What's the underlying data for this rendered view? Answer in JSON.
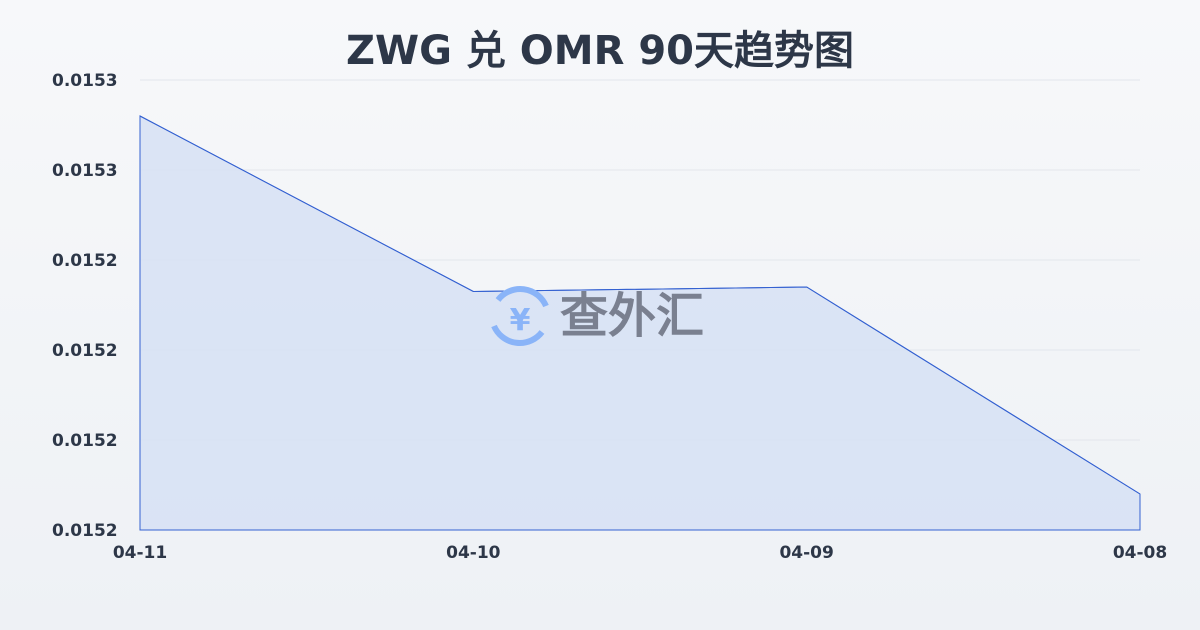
{
  "chart_data": {
    "type": "area",
    "title": "ZWG 兑 OMR 90天趋势图",
    "x": [
      "04-11",
      "04-10",
      "04-09",
      "04-08"
    ],
    "values": [
      0.015272,
      0.015233,
      0.015234,
      0.015188
    ],
    "ylim": [
      0.01518,
      0.01528
    ],
    "yticks": [
      0.01528,
      0.01526,
      0.01524,
      0.01522,
      0.0152,
      0.01518
    ],
    "ytick_labels": [
      "0.0153",
      "0.0153",
      "0.0152",
      "0.0152",
      "0.0152",
      "0.0152"
    ],
    "grid": true,
    "colors": {
      "line": "#3461d1",
      "fill": "#d6e1f5",
      "grid": "#e3e6ec"
    }
  },
  "watermark": {
    "text": "查外汇",
    "icon": "yen-exchange-icon",
    "icon_color": "#8ab4f8"
  }
}
